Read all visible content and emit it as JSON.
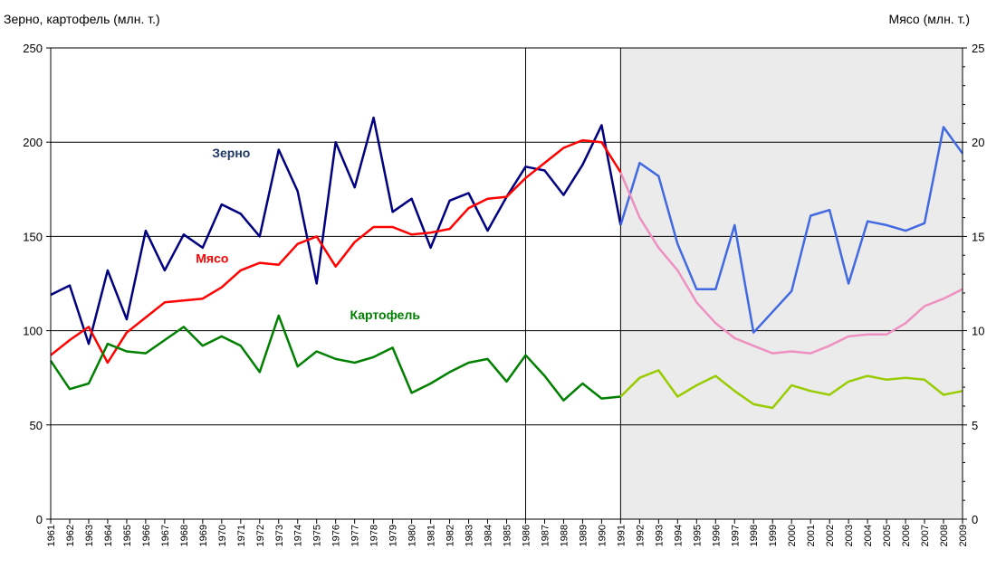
{
  "chart_data": {
    "type": "line",
    "left_axis_title": "Зерно, картофель (млн. т.)",
    "right_axis_title": "Мясо (млн. т.)",
    "left_ylim": [
      0,
      250
    ],
    "right_ylim": [
      0,
      25
    ],
    "left_ticks": [
      "0",
      "50",
      "100",
      "150",
      "200",
      "250"
    ],
    "right_ticks": [
      "0",
      "5",
      "10",
      "15",
      "20",
      "25"
    ],
    "grid": true,
    "shaded_region": [
      1991,
      2009
    ],
    "vertical_markers": [
      1986,
      1991
    ],
    "x": [
      "1961",
      "1962",
      "1963",
      "1964",
      "1965",
      "1966",
      "1967",
      "1968",
      "1969",
      "1970",
      "1971",
      "1972",
      "1973",
      "1974",
      "1975",
      "1976",
      "1977",
      "1978",
      "1979",
      "1980",
      "1981",
      "1982",
      "1983",
      "1984",
      "1985",
      "1986",
      "1987",
      "1988",
      "1989",
      "1990",
      "1991",
      "1992",
      "1993",
      "1994",
      "1995",
      "1996",
      "1997",
      "1998",
      "1999",
      "2000",
      "2001",
      "2002",
      "2003",
      "2004",
      "2005",
      "2006",
      "2007",
      "2008",
      "2009"
    ],
    "series": [
      {
        "name": "Зерно",
        "axis": "left",
        "color_ussr": "#000080",
        "color_russia": "#4169e1",
        "label_color": "#1f3864",
        "values": [
          119,
          124,
          93,
          132,
          106,
          153,
          132,
          151,
          144,
          167,
          162,
          150,
          196,
          174,
          125,
          200,
          176,
          213,
          163,
          170,
          144,
          169,
          173,
          153,
          171,
          187,
          185,
          172,
          188,
          209,
          156,
          189,
          182,
          146,
          122,
          122,
          156,
          99,
          110,
          121,
          161,
          164,
          125,
          158,
          156,
          153,
          157,
          208,
          194
        ]
      },
      {
        "name": "Мясо",
        "axis": "right",
        "color_ussr": "#ff0000",
        "color_russia": "#ee90c0",
        "label_color": "#ff0000",
        "values": [
          8.7,
          9.5,
          10.2,
          8.3,
          9.9,
          10.7,
          11.5,
          11.6,
          11.7,
          12.3,
          13.2,
          13.6,
          13.5,
          14.6,
          15.0,
          13.4,
          14.7,
          15.5,
          15.5,
          15.1,
          15.2,
          15.4,
          16.5,
          17.0,
          17.1,
          18.1,
          18.9,
          19.7,
          20.1,
          20.0,
          18.4,
          16.0,
          14.4,
          13.2,
          11.5,
          10.4,
          9.6,
          9.2,
          8.8,
          8.9,
          8.8,
          9.2,
          9.7,
          9.8,
          9.8,
          10.4,
          11.3,
          11.7,
          12.2
        ]
      },
      {
        "name": "Картофель",
        "axis": "left",
        "color_ussr": "#008000",
        "color_russia": "#99cc00",
        "label_color": "#008000",
        "values": [
          84,
          69,
          72,
          93,
          89,
          88,
          95,
          102,
          92,
          97,
          92,
          78,
          108,
          81,
          89,
          85,
          83,
          86,
          91,
          67,
          72,
          78,
          83,
          85,
          73,
          87,
          76,
          63,
          72,
          64,
          65,
          75,
          79,
          65,
          71,
          76,
          68,
          61,
          59,
          71,
          68,
          66,
          73,
          76,
          74,
          75,
          74,
          66,
          68
        ]
      }
    ]
  }
}
